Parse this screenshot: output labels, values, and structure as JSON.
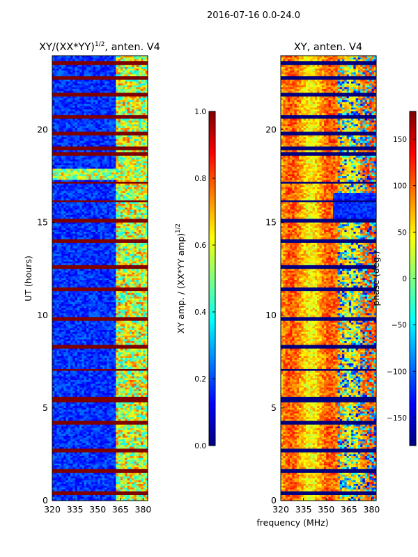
{
  "figure": {
    "suptitle": "2016-07-16 0.0-24.0",
    "shared_xlabel": "frequency (MHz)"
  },
  "colors": {
    "jet_stops": [
      "#00007f",
      "#0000ff",
      "#007fff",
      "#00ffff",
      "#7fff7f",
      "#ffff00",
      "#ff7f00",
      "#ff0000",
      "#7f0000"
    ],
    "axis": "#000000",
    "background": "#ffffff"
  },
  "chart_data": [
    {
      "type": "heatmap",
      "title": "XY/(XX*YY)",
      "title_sup": "1/2",
      "title_suffix": ", anten. V4",
      "xlabel": "",
      "ylabel": "UT (hours)",
      "xlim": [
        320,
        383
      ],
      "ylim": [
        0,
        24
      ],
      "xticks": [
        320,
        335,
        350,
        365,
        380
      ],
      "yticks": [
        0,
        5,
        10,
        15,
        20
      ],
      "colorbar": {
        "label": "XY amp. / (XX*YY amp)",
        "label_sup": "1/2",
        "range": [
          0.0,
          1.0
        ],
        "ticks": [
          "0.0",
          "0.2",
          "0.4",
          "0.6",
          "0.8",
          "1.0"
        ]
      },
      "flagged_hours": [
        0.4,
        1.6,
        2.7,
        4.2,
        5.35,
        5.5,
        7.05,
        8.3,
        9.8,
        11.4,
        12.6,
        14.0,
        15.1,
        16.15,
        17.15,
        18.7,
        19.0,
        19.8,
        20.7,
        21.9,
        22.8,
        23.6
      ],
      "strong_band_mhz": [
        362,
        383
      ],
      "value_summary": "amplitude mostly 0.05-0.25 across 320-360 MHz, 0.3-0.7 in the 362-383 MHz band; flagged integrations saturate at 1.0"
    },
    {
      "type": "heatmap",
      "title": "XY, anten. V4",
      "xlabel": "",
      "ylabel": "",
      "xlim": [
        320,
        383
      ],
      "ylim": [
        0,
        24
      ],
      "xticks": [
        320,
        335,
        350,
        365,
        380
      ],
      "yticks": [
        0,
        5,
        10,
        15,
        20
      ],
      "colorbar": {
        "label": "phase (deg.)",
        "range": [
          -180,
          180
        ],
        "ticks": [
          "−150",
          "−100",
          "−50",
          "0",
          "50",
          "100",
          "150"
        ]
      },
      "flagged_hours": [
        0.4,
        1.6,
        2.7,
        4.2,
        5.35,
        5.5,
        7.05,
        8.3,
        9.8,
        11.4,
        12.6,
        14.0,
        15.1,
        16.15,
        17.15,
        18.7,
        19.0,
        19.8,
        20.7,
        21.9,
        22.8,
        23.6
      ],
      "value_summary": "phase mostly 30-150 deg with vertical bands near 340 and 358 MHz; scattered negative phases above 360 MHz; flagged integrations at -180 deg"
    }
  ]
}
